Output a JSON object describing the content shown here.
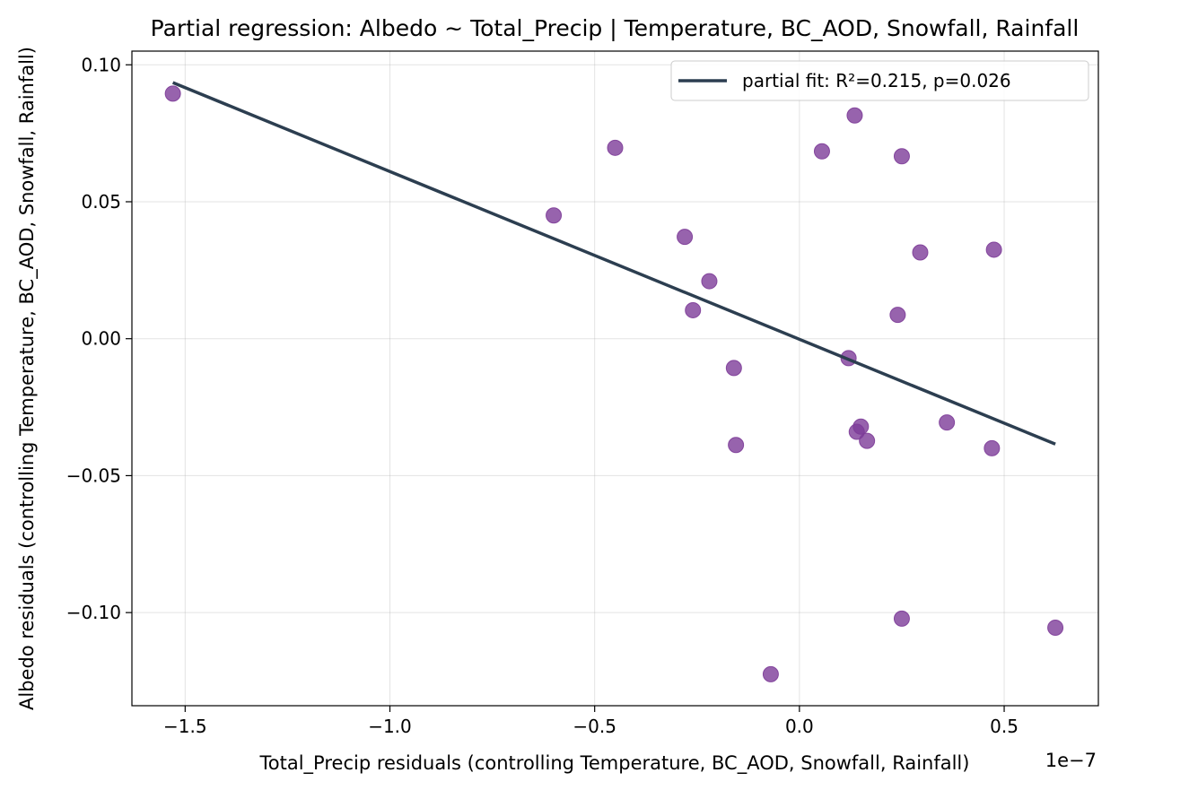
{
  "chart_data": {
    "type": "scatter",
    "title": "Partial regression: Albedo ~ Total_Precip | Temperature, BC_AOD, Snowfall, Rainfall",
    "xlabel": "Total_Precip residuals (controlling Temperature, BC_AOD, Snowfall, Rainfall)",
    "ylabel": "Albedo residuals (controlling Temperature, BC_AOD, Snowfall, Rainfall)",
    "x_offset_label": "1e−7",
    "xlim": [
      -1.63,
      0.73
    ],
    "ylim": [
      -0.134,
      0.105
    ],
    "xticks": [
      {
        "value": -1.5,
        "label": "−1.5"
      },
      {
        "value": -1.0,
        "label": "−1.0"
      },
      {
        "value": -0.5,
        "label": "−0.5"
      },
      {
        "value": 0.0,
        "label": "0.0"
      },
      {
        "value": 0.5,
        "label": "0.5"
      }
    ],
    "yticks": [
      {
        "value": 0.1,
        "label": "0.10"
      },
      {
        "value": 0.05,
        "label": "0.05"
      },
      {
        "value": 0.0,
        "label": "0.00"
      },
      {
        "value": -0.05,
        "label": "−0.05"
      },
      {
        "value": -0.1,
        "label": "−0.10"
      }
    ],
    "grid": true,
    "legend_position": "top-right",
    "point_color": "#7d3c98",
    "line_color": "#2c3e50",
    "points": [
      {
        "x": -1.53,
        "y": 0.0895
      },
      {
        "x": -0.45,
        "y": 0.0697
      },
      {
        "x": -0.6,
        "y": 0.045
      },
      {
        "x": -0.28,
        "y": 0.0372
      },
      {
        "x": -0.22,
        "y": 0.021
      },
      {
        "x": -0.26,
        "y": 0.0104
      },
      {
        "x": -0.16,
        "y": -0.0107
      },
      {
        "x": -0.155,
        "y": -0.0388
      },
      {
        "x": -0.07,
        "y": -0.1225
      },
      {
        "x": 0.055,
        "y": 0.0684
      },
      {
        "x": 0.12,
        "y": -0.0071
      },
      {
        "x": 0.135,
        "y": 0.0815
      },
      {
        "x": 0.14,
        "y": -0.034
      },
      {
        "x": 0.15,
        "y": -0.0321
      },
      {
        "x": 0.165,
        "y": -0.0373
      },
      {
        "x": 0.24,
        "y": 0.0087
      },
      {
        "x": 0.25,
        "y": 0.0666
      },
      {
        "x": 0.25,
        "y": -0.1022
      },
      {
        "x": 0.295,
        "y": 0.0315
      },
      {
        "x": 0.36,
        "y": -0.0306
      },
      {
        "x": 0.47,
        "y": -0.04
      },
      {
        "x": 0.475,
        "y": 0.0325
      },
      {
        "x": 0.625,
        "y": -0.1055
      }
    ],
    "series": [
      {
        "name": "partial fit: R²=0.215, p=0.026",
        "kind": "line",
        "x": [
          -1.53,
          0.625
        ],
        "y": [
          0.0935,
          -0.0385
        ]
      }
    ]
  }
}
